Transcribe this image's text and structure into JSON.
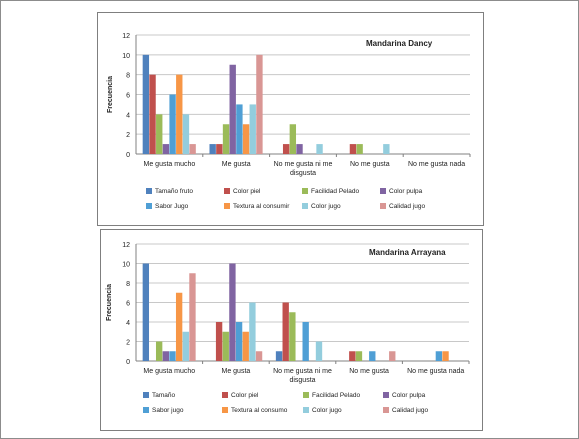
{
  "chart_data": [
    {
      "type": "bar",
      "title": "Mandarina Dancy",
      "ylabel": "Frecuencia",
      "xlabel": "",
      "ylim": [
        0,
        12
      ],
      "yticks": [
        0,
        2,
        4,
        6,
        8,
        10,
        12
      ],
      "grid": true,
      "legend_position": "bottom",
      "categories": [
        "Me gusta mucho",
        "Me gusta",
        "No me gusta ni me disgusta",
        "No me gusta",
        "No me gusta nada"
      ],
      "series": [
        {
          "name": "Tamaño fruto",
          "color": "#4f81bd",
          "values": [
            10,
            1,
            0,
            0,
            0
          ]
        },
        {
          "name": "Color piel",
          "color": "#c0504d",
          "values": [
            8,
            1,
            1,
            1,
            0
          ]
        },
        {
          "name": "Facilidad Pelado",
          "color": "#9bbb59",
          "values": [
            4,
            3,
            3,
            1,
            0
          ]
        },
        {
          "name": "Color pulpa",
          "color": "#8064a2",
          "values": [
            1,
            9,
            1,
            0,
            0
          ]
        },
        {
          "name": "Sabor Jugo",
          "color": "#4f9fd5",
          "values": [
            6,
            5,
            0,
            0,
            0
          ]
        },
        {
          "name": "Textura al consumir",
          "color": "#f79646",
          "values": [
            8,
            3,
            0,
            0,
            0
          ]
        },
        {
          "name": "Color jugo",
          "color": "#93cddd",
          "values": [
            4,
            5,
            1,
            1,
            0
          ]
        },
        {
          "name": "Calidad jugo",
          "color": "#d99694",
          "values": [
            1,
            10,
            0,
            0,
            0
          ]
        }
      ]
    },
    {
      "type": "bar",
      "title": "Mandarina Arrayana",
      "ylabel": "Frecuencia",
      "xlabel": "",
      "ylim": [
        0,
        12
      ],
      "yticks": [
        0,
        2,
        4,
        6,
        8,
        10,
        12
      ],
      "grid": true,
      "legend_position": "bottom",
      "categories": [
        "Me gusta mucho",
        "Me gusta",
        "No me gusta ni me disgusta",
        "No me gusta",
        "No me gusta nada"
      ],
      "series": [
        {
          "name": "Tamaño",
          "color": "#4f81bd",
          "values": [
            10,
            0,
            1,
            0,
            0
          ]
        },
        {
          "name": "Color piel",
          "color": "#c0504d",
          "values": [
            0,
            4,
            6,
            1,
            0
          ]
        },
        {
          "name": "Facilidad Pelado",
          "color": "#9bbb59",
          "values": [
            2,
            3,
            5,
            1,
            0
          ]
        },
        {
          "name": "Color pulpa",
          "color": "#8064a2",
          "values": [
            1,
            10,
            0,
            0,
            0
          ]
        },
        {
          "name": "Sabor jugo",
          "color": "#4f9fd5",
          "values": [
            1,
            4,
            4,
            1,
            1
          ]
        },
        {
          "name": "Textura al consumo",
          "color": "#f79646",
          "values": [
            7,
            3,
            0,
            0,
            1
          ]
        },
        {
          "name": "Color jugo",
          "color": "#93cddd",
          "values": [
            3,
            6,
            2,
            0,
            0
          ]
        },
        {
          "name": "Calidad jugo",
          "color": "#d99694",
          "values": [
            9,
            1,
            0,
            1,
            0
          ]
        }
      ]
    }
  ]
}
